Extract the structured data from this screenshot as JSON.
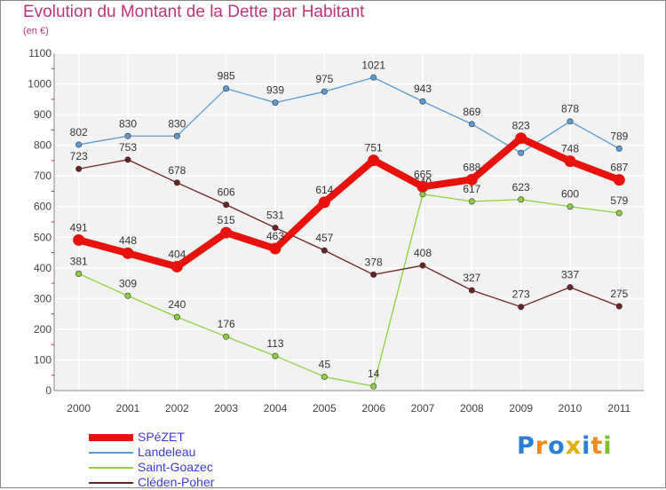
{
  "header": {
    "title": "Evolution du Montant de la Dette par Habitant",
    "subtitle": "(en €)"
  },
  "logo": {
    "letters": [
      "P",
      "r",
      "o",
      "x",
      "i",
      "t",
      "i"
    ],
    "colors": [
      "#2a7fd4",
      "#f08a1a",
      "#2a7fd4",
      "#e0b000",
      "#2a7fd4",
      "#f08a1a",
      "#7fbf2a"
    ]
  },
  "chart_data": {
    "type": "line",
    "x": [
      "2000",
      "2001",
      "2002",
      "2003",
      "2004",
      "2005",
      "2006",
      "2007",
      "2008",
      "2009",
      "2010",
      "2011"
    ],
    "ylim": [
      0,
      1100
    ],
    "yticks": [
      0,
      100,
      200,
      300,
      400,
      500,
      600,
      700,
      800,
      900,
      1000,
      1100
    ],
    "grid": true,
    "legend_position": "bottom-left",
    "series": [
      {
        "name": "Landeleau",
        "color": "#5a9bd5",
        "values": [
          802,
          830,
          830,
          985,
          939,
          975,
          1021,
          943,
          869,
          775,
          878,
          789
        ],
        "labels": [
          "802",
          "830",
          "830",
          "985",
          "939",
          "975",
          "1021",
          "943",
          "869",
          "",
          "878",
          "789"
        ]
      },
      {
        "name": "Saint-Goazec",
        "color": "#90d040",
        "values": [
          381,
          309,
          240,
          176,
          113,
          45,
          14,
          640,
          617,
          623,
          600,
          579
        ],
        "labels": [
          "381",
          "309",
          "240",
          "176",
          "113",
          "45",
          "14",
          "640",
          "617",
          "623",
          "600",
          "579"
        ]
      },
      {
        "name": "Cléden-Poher",
        "color": "#6b2222",
        "values": [
          723,
          753,
          678,
          606,
          531,
          457,
          378,
          408,
          327,
          273,
          337,
          275
        ],
        "labels": [
          "723",
          "753",
          "678",
          "606",
          "531",
          "457",
          "378",
          "408",
          "327",
          "273",
          "337",
          "275"
        ]
      },
      {
        "name": "SPéZET",
        "color": "#e8120c",
        "values": [
          491,
          448,
          404,
          515,
          463,
          614,
          751,
          665,
          688,
          823,
          748,
          687
        ],
        "labels": [
          "491",
          "448",
          "404",
          "515",
          "463",
          "614",
          "751",
          "665",
          "688",
          "823",
          "748",
          "687"
        ]
      }
    ],
    "legend": [
      "SPéZET",
      "Landeleau",
      "Saint-Goazec",
      "Cléden-Poher"
    ]
  }
}
